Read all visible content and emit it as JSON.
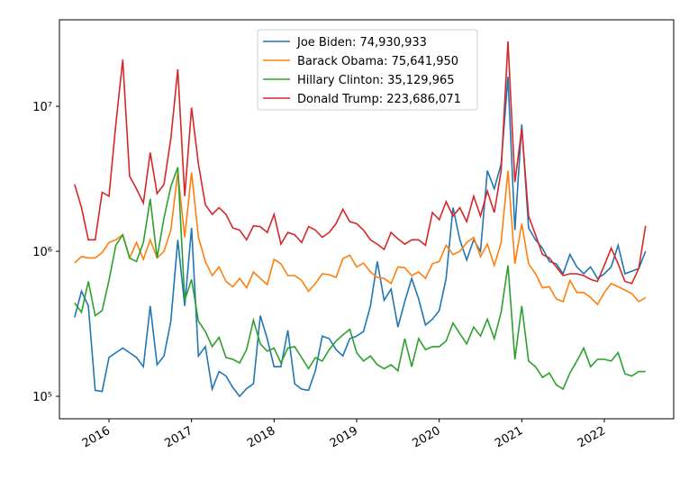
{
  "chart_data": {
    "type": "line",
    "yscale": "log",
    "legend": "upper center",
    "x": [
      2015.583,
      2015.667,
      2015.75,
      2015.833,
      2015.917,
      2016.0,
      2016.083,
      2016.167,
      2016.25,
      2016.333,
      2016.417,
      2016.5,
      2016.583,
      2016.667,
      2016.75,
      2016.833,
      2016.917,
      2017.0,
      2017.083,
      2017.167,
      2017.25,
      2017.333,
      2017.417,
      2017.5,
      2017.583,
      2017.667,
      2017.75,
      2017.833,
      2017.917,
      2018.0,
      2018.083,
      2018.167,
      2018.25,
      2018.333,
      2018.417,
      2018.5,
      2018.583,
      2018.667,
      2018.75,
      2018.833,
      2018.917,
      2019.0,
      2019.083,
      2019.167,
      2019.25,
      2019.333,
      2019.417,
      2019.5,
      2019.583,
      2019.667,
      2019.75,
      2019.833,
      2019.917,
      2020.0,
      2020.083,
      2020.167,
      2020.25,
      2020.333,
      2020.417,
      2020.5,
      2020.583,
      2020.667,
      2020.75,
      2020.833,
      2020.917,
      2021.0,
      2021.083,
      2021.167,
      2021.25,
      2021.333,
      2021.417,
      2021.5,
      2021.583,
      2021.667,
      2021.75,
      2021.833,
      2021.917,
      2022.0,
      2022.083,
      2022.167,
      2022.25,
      2022.333,
      2022.417,
      2022.5
    ],
    "xlim": [
      2015.4,
      2022.84
    ],
    "xticks": [
      2016,
      2017,
      2018,
      2019,
      2020,
      2021,
      2022
    ],
    "ylim": [
      70000,
      39500000
    ],
    "yticks": [
      {
        "value": 100000,
        "label": "10⁵"
      },
      {
        "value": 1000000,
        "label": "10⁶"
      },
      {
        "value": 10000000,
        "label": "10⁷"
      }
    ],
    "series": [
      {
        "name": "Joe Biden: 74,930,933",
        "color": "#1f77b4",
        "values": [
          350000,
          530000,
          420000,
          110000,
          108000,
          185000,
          200000,
          215000,
          200000,
          185000,
          160000,
          420000,
          165000,
          190000,
          330000,
          1200000,
          420000,
          1450000,
          190000,
          220000,
          112000,
          148000,
          138000,
          115000,
          100000,
          113000,
          122000,
          360000,
          250000,
          160000,
          160000,
          285000,
          122000,
          112000,
          110000,
          150000,
          260000,
          250000,
          210000,
          190000,
          250000,
          260000,
          280000,
          420000,
          850000,
          460000,
          550000,
          300000,
          450000,
          650000,
          470000,
          310000,
          340000,
          390000,
          650000,
          2000000,
          1200000,
          870000,
          1200000,
          1000000,
          3600000,
          2700000,
          4000000,
          16000000,
          1400000,
          7500000,
          1450000,
          1200000,
          1050000,
          850000,
          820000,
          700000,
          950000,
          780000,
          700000,
          780000,
          650000,
          700000,
          780000,
          1100000,
          700000,
          730000,
          760000,
          1000000
        ]
      },
      {
        "name": "Barack Obama: 75,641,950",
        "color": "#ff7f0e",
        "values": [
          830000,
          920000,
          900000,
          900000,
          980000,
          1150000,
          1200000,
          1300000,
          900000,
          1150000,
          880000,
          1200000,
          900000,
          1000000,
          1400000,
          3500000,
          1250000,
          3500000,
          1250000,
          850000,
          680000,
          780000,
          620000,
          570000,
          650000,
          560000,
          720000,
          650000,
          590000,
          880000,
          820000,
          680000,
          680000,
          630000,
          530000,
          600000,
          700000,
          690000,
          660000,
          890000,
          940000,
          780000,
          830000,
          720000,
          660000,
          650000,
          600000,
          780000,
          770000,
          680000,
          720000,
          650000,
          820000,
          850000,
          1100000,
          950000,
          1000000,
          1150000,
          1250000,
          920000,
          1120000,
          800000,
          1150000,
          3600000,
          820000,
          1550000,
          820000,
          700000,
          560000,
          570000,
          470000,
          450000,
          630000,
          520000,
          520000,
          480000,
          430000,
          520000,
          600000,
          570000,
          540000,
          510000,
          450000,
          480000
        ]
      },
      {
        "name": "Hillary Clinton: 35,129,965",
        "color": "#2ca02c",
        "values": [
          440000,
          380000,
          620000,
          360000,
          390000,
          630000,
          1100000,
          1300000,
          900000,
          850000,
          1150000,
          2300000,
          900000,
          1700000,
          2800000,
          3800000,
          460000,
          640000,
          330000,
          280000,
          220000,
          255000,
          185000,
          180000,
          170000,
          210000,
          335000,
          230000,
          205000,
          215000,
          170000,
          215000,
          220000,
          185000,
          155000,
          185000,
          175000,
          210000,
          240000,
          265000,
          290000,
          200000,
          175000,
          190000,
          165000,
          155000,
          165000,
          150000,
          250000,
          160000,
          250000,
          210000,
          220000,
          220000,
          240000,
          320000,
          270000,
          230000,
          300000,
          260000,
          340000,
          250000,
          380000,
          800000,
          180000,
          420000,
          175000,
          160000,
          135000,
          145000,
          120000,
          112000,
          145000,
          175000,
          215000,
          160000,
          180000,
          180000,
          175000,
          200000,
          143000,
          138000,
          148000,
          148000
        ]
      },
      {
        "name": "Donald Trump: 223,686,071",
        "color": "#d62728",
        "values": [
          2900000,
          2000000,
          1200000,
          1200000,
          2550000,
          2400000,
          7500000,
          21000000,
          3300000,
          2700000,
          2150000,
          4800000,
          2500000,
          2900000,
          6000000,
          18000000,
          2400000,
          9800000,
          4000000,
          2100000,
          1800000,
          2000000,
          1800000,
          1450000,
          1400000,
          1200000,
          1500000,
          1480000,
          1350000,
          1800000,
          1120000,
          1350000,
          1300000,
          1150000,
          1480000,
          1400000,
          1250000,
          1350000,
          1550000,
          1950000,
          1600000,
          1550000,
          1400000,
          1200000,
          1120000,
          1030000,
          1350000,
          1220000,
          1120000,
          1200000,
          1200000,
          1100000,
          1850000,
          1650000,
          2200000,
          1750000,
          2000000,
          1600000,
          2400000,
          1750000,
          2600000,
          1850000,
          3600000,
          28000000,
          3000000,
          7000000,
          1750000,
          1300000,
          950000,
          900000,
          780000,
          680000,
          700000,
          700000,
          680000,
          640000,
          620000,
          800000,
          1050000,
          820000,
          620000,
          600000,
          760000,
          1500000
        ]
      }
    ]
  }
}
